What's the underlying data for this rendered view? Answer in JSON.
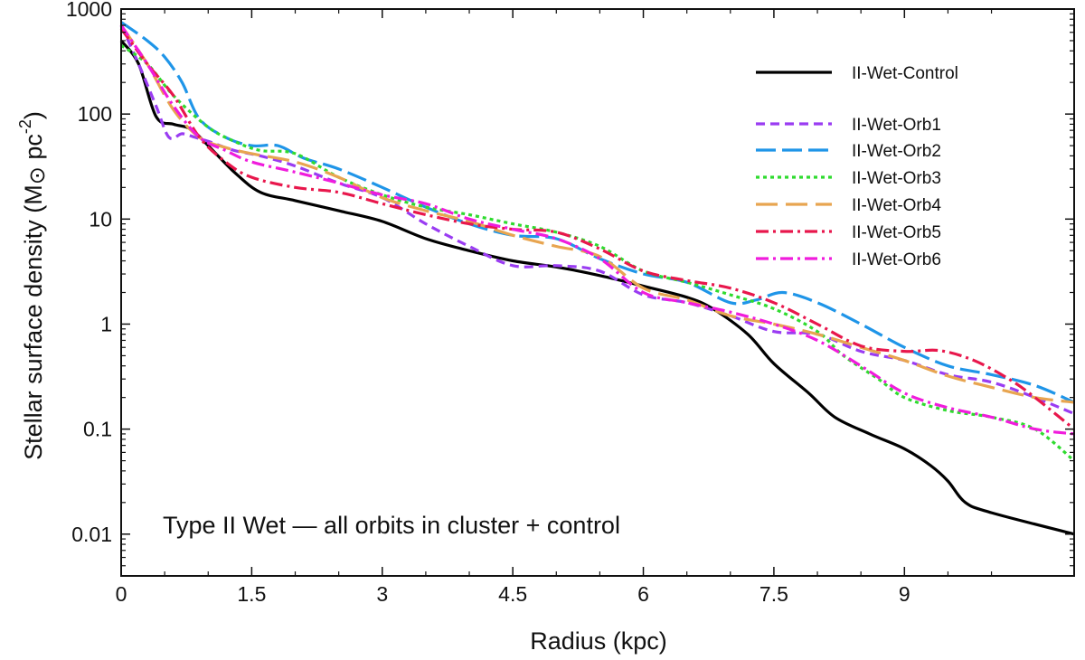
{
  "chart_data": {
    "type": "line",
    "xlabel": "Radius (kpc)",
    "ylabel_main": "Stellar surface density (M",
    "ylabel_unit": " pc",
    "ylabel_exp": "-2",
    "ylabel_close": ")",
    "xlim": [
      0,
      10.95
    ],
    "ylim": [
      0.004,
      1000
    ],
    "yscale": "log",
    "xticks": [
      "0",
      "1.5",
      "3",
      "4.5",
      "6",
      "7.5",
      "9"
    ],
    "xtick_values": [
      0,
      1.5,
      3,
      4.5,
      6,
      7.5,
      9
    ],
    "yticks": [
      "0.01",
      "0.1",
      "1",
      "10",
      "100",
      "1000"
    ],
    "ytick_values": [
      0.01,
      0.1,
      1,
      10,
      100,
      1000
    ],
    "annotation": "Type II Wet — all orbits in cluster + control",
    "legend_position": "top-right",
    "series": [
      {
        "name": "II-Wet-Control",
        "color": "#000000",
        "dash": "solid",
        "x": [
          0,
          0.2,
          0.4,
          0.6,
          0.8,
          1.0,
          1.3,
          1.6,
          2.0,
          2.5,
          3.0,
          3.5,
          4.0,
          4.5,
          5.0,
          5.5,
          6.0,
          6.5,
          6.8,
          7.2,
          7.5,
          7.9,
          8.2,
          8.6,
          9.0,
          9.3,
          9.5,
          9.7,
          10.0,
          10.95
        ],
        "y": [
          500,
          300,
          95,
          80,
          72,
          50,
          28,
          18,
          15,
          12,
          9.5,
          6.5,
          5,
          4,
          3.5,
          2.9,
          2.3,
          1.8,
          1.4,
          0.8,
          0.42,
          0.22,
          0.13,
          0.09,
          0.065,
          0.045,
          0.032,
          0.02,
          0.016,
          0.01
        ]
      },
      {
        "name": "II-Wet-Orb1",
        "color": "#9a3cf2",
        "dash": "10,6",
        "x": [
          0,
          0.2,
          0.4,
          0.55,
          0.7,
          0.85,
          1.0,
          1.3,
          1.6,
          2.0,
          2.5,
          3.0,
          3.5,
          4.0,
          4.5,
          5.0,
          5.5,
          6.0,
          6.5,
          7.0,
          7.5,
          8.0,
          8.5,
          9.0,
          9.5,
          10.0,
          10.5,
          10.95
        ],
        "y": [
          700,
          300,
          120,
          60,
          65,
          60,
          55,
          45,
          40,
          32,
          22,
          16,
          9,
          5.5,
          3.6,
          3.6,
          3.2,
          1.9,
          1.6,
          1.2,
          0.85,
          0.8,
          0.55,
          0.45,
          0.33,
          0.28,
          0.2,
          0.14
        ]
      },
      {
        "name": "II-Wet-Orb2",
        "color": "#1f95e8",
        "dash": "22,7",
        "x": [
          0,
          0.3,
          0.5,
          0.7,
          0.9,
          1.2,
          1.5,
          1.8,
          2.1,
          2.5,
          3.0,
          3.5,
          4.0,
          4.5,
          5.0,
          5.5,
          6.0,
          6.5,
          7.0,
          7.3,
          7.6,
          8.0,
          8.5,
          9.0,
          9.5,
          10.0,
          10.5,
          10.95
        ],
        "y": [
          750,
          500,
          350,
          200,
          90,
          60,
          50,
          50,
          38,
          30,
          20,
          13,
          9,
          7,
          6.5,
          4.2,
          3,
          2.5,
          1.6,
          1.7,
          2.0,
          1.6,
          1.0,
          0.6,
          0.4,
          0.33,
          0.26,
          0.18
        ]
      },
      {
        "name": "II-Wet-Orb3",
        "color": "#2fdb2f",
        "dash": "4,4",
        "x": [
          0,
          0.3,
          0.6,
          1.0,
          1.3,
          1.6,
          2.0,
          2.5,
          3.0,
          3.5,
          4.0,
          4.5,
          5.0,
          5.5,
          6.0,
          6.5,
          7.0,
          7.5,
          8.0,
          8.3,
          8.7,
          9.0,
          9.5,
          10.0,
          10.5,
          10.95
        ],
        "y": [
          450,
          300,
          150,
          75,
          55,
          45,
          42,
          25,
          17,
          13,
          11,
          9,
          7.5,
          5.5,
          3.2,
          2.5,
          1.9,
          1.4,
          0.85,
          0.5,
          0.3,
          0.2,
          0.15,
          0.13,
          0.1,
          0.05
        ]
      },
      {
        "name": "II-Wet-Orb4",
        "color": "#e8a550",
        "dash": "24,9",
        "x": [
          0,
          0.3,
          0.6,
          0.9,
          1.2,
          1.5,
          2.0,
          2.5,
          3.0,
          3.5,
          4.0,
          4.5,
          5.0,
          5.5,
          6.0,
          6.5,
          7.0,
          7.5,
          8.0,
          8.5,
          9.0,
          9.5,
          10.0,
          10.5,
          10.95
        ],
        "y": [
          700,
          300,
          110,
          60,
          48,
          42,
          35,
          25,
          16,
          12,
          9.5,
          7,
          5.5,
          4.4,
          2.2,
          1.7,
          1.2,
          1.0,
          0.8,
          0.6,
          0.45,
          0.32,
          0.25,
          0.2,
          0.18
        ]
      },
      {
        "name": "II-Wet-Orb5",
        "color": "#e8174c",
        "dash": "14,5,3,5",
        "x": [
          0,
          0.3,
          0.6,
          0.9,
          1.2,
          1.5,
          2.0,
          2.5,
          3.0,
          3.5,
          4.0,
          4.5,
          5.0,
          5.5,
          6.0,
          6.5,
          7.0,
          7.5,
          8.0,
          8.5,
          9.0,
          9.4,
          9.8,
          10.2,
          10.5,
          10.95
        ],
        "y": [
          650,
          300,
          150,
          60,
          35,
          25,
          20,
          18,
          14,
          11,
          9,
          8,
          7.5,
          5.2,
          3.2,
          2.6,
          2.2,
          1.6,
          1.0,
          0.62,
          0.55,
          0.56,
          0.45,
          0.3,
          0.2,
          0.1
        ]
      },
      {
        "name": "II-Wet-Orb6",
        "color": "#f01cdc",
        "dash": "14,5,3,5",
        "x": [
          0,
          0.3,
          0.6,
          0.9,
          1.2,
          1.5,
          2.0,
          2.5,
          3.0,
          3.5,
          4.0,
          4.5,
          5.0,
          5.5,
          6.0,
          6.5,
          7.0,
          7.5,
          8.0,
          8.5,
          9.0,
          9.5,
          10.0,
          10.5,
          10.95
        ],
        "y": [
          700,
          300,
          120,
          60,
          45,
          35,
          28,
          22,
          17,
          14,
          10,
          8,
          6.5,
          4.2,
          2.0,
          1.6,
          1.3,
          1.0,
          0.7,
          0.4,
          0.22,
          0.16,
          0.13,
          0.1,
          0.09
        ]
      }
    ]
  }
}
